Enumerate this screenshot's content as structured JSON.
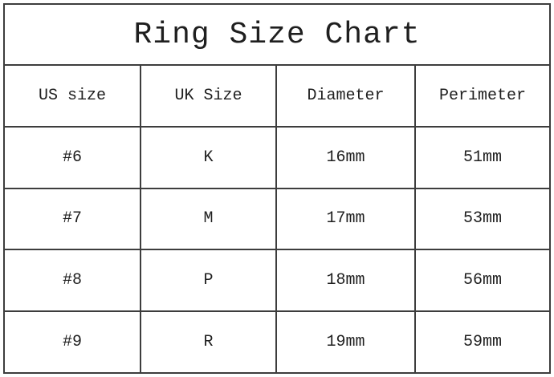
{
  "chart_data": {
    "type": "table",
    "title": "Ring Size Chart",
    "columns": [
      "US size",
      "UK Size",
      "Diameter",
      "Perimeter"
    ],
    "rows": [
      [
        "#6",
        "K",
        "16mm",
        "51mm"
      ],
      [
        "#7",
        "M",
        "17mm",
        "53mm"
      ],
      [
        "#8",
        "P",
        "18mm",
        "56mm"
      ],
      [
        "#9",
        "R",
        "19mm",
        "59mm"
      ]
    ],
    "layout": {
      "grid": "on",
      "title_position": "top-center-spanning-all-columns"
    }
  },
  "colors": {
    "border": "#3d3d3d",
    "text": "#1f1f1f",
    "background": "#ffffff"
  }
}
